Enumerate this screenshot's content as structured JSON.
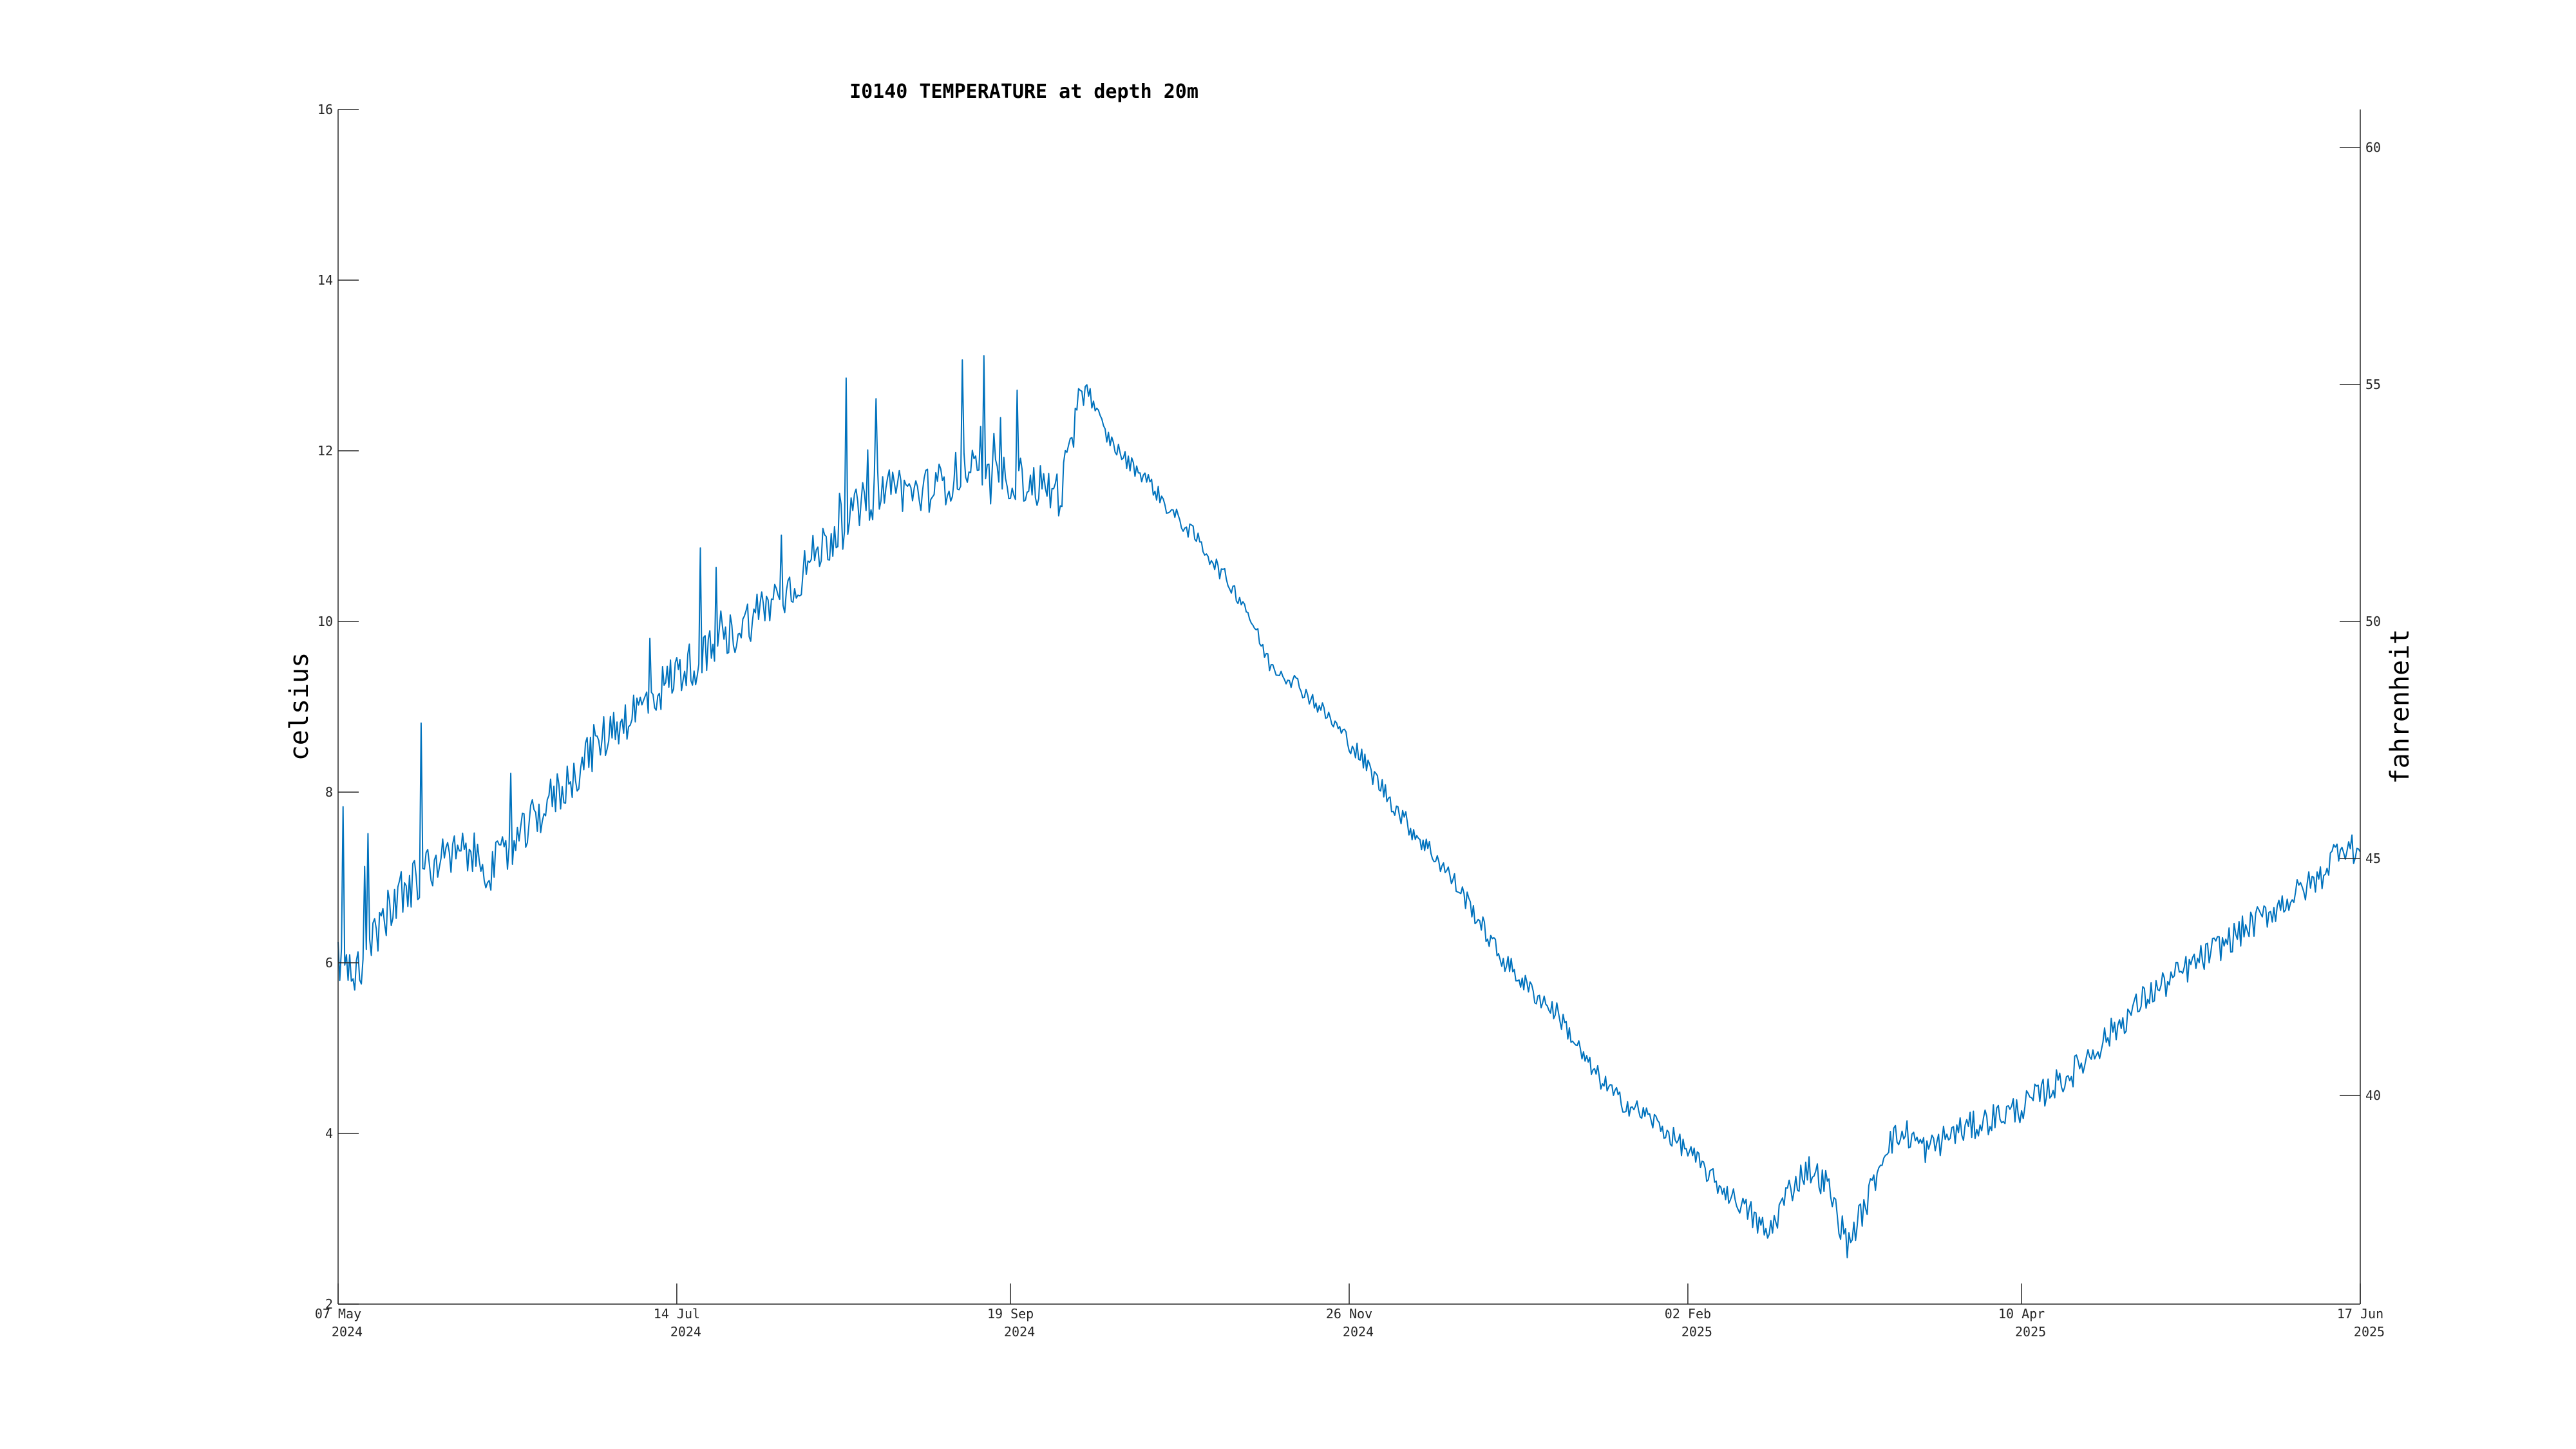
{
  "chart_data": {
    "type": "line",
    "title": "I0140 TEMPERATURE at depth 20m",
    "ylabel": "celsius",
    "y2label": "fahrenheit",
    "xlabel": "",
    "xlim": [
      "2024-05-07",
      "2025-06-17"
    ],
    "ylim": [
      2,
      16
    ],
    "y2lim": [
      35.6,
      60.8
    ],
    "yticks": [
      "2",
      "4",
      "6",
      "8",
      "10",
      "12",
      "14",
      "16"
    ],
    "y2ticks": [
      "40",
      "45",
      "50",
      "55",
      "60"
    ],
    "xticks": [
      {
        "date": "2024-05-07",
        "line1": "07 May",
        "line2": "2024"
      },
      {
        "date": "2024-07-14",
        "line1": "14 Jul",
        "line2": "2024"
      },
      {
        "date": "2024-09-19",
        "line1": "19 Sep",
        "line2": "2024"
      },
      {
        "date": "2024-11-26",
        "line1": "26 Nov",
        "line2": "2024"
      },
      {
        "date": "2025-02-02",
        "line1": "02 Feb",
        "line2": "2025"
      },
      {
        "date": "2025-04-10",
        "line1": "10 Apr",
        "line2": "2025"
      },
      {
        "date": "2025-06-17",
        "line1": "17 Jun",
        "line2": "2025"
      }
    ],
    "grid": false,
    "legend": "none",
    "line_color": "#0072BD",
    "series": [
      {
        "x": [
          "2024-05-07",
          "2024-05-10",
          "2024-05-14",
          "2024-05-18",
          "2024-05-23",
          "2024-05-28",
          "2024-06-02",
          "2024-06-07",
          "2024-06-12",
          "2024-06-17",
          "2024-06-22",
          "2024-06-27",
          "2024-07-02",
          "2024-07-07",
          "2024-07-14",
          "2024-07-20",
          "2024-07-26",
          "2024-08-01",
          "2024-08-06",
          "2024-08-11",
          "2024-08-16",
          "2024-08-21",
          "2024-08-26",
          "2024-08-31",
          "2024-09-05",
          "2024-09-10",
          "2024-09-15",
          "2024-09-19",
          "2024-09-24",
          "2024-09-29",
          "2024-10-04",
          "2024-10-08",
          "2024-10-12",
          "2024-10-16",
          "2024-10-21",
          "2024-10-26",
          "2024-10-31",
          "2024-11-05",
          "2024-11-10",
          "2024-11-15",
          "2024-11-20",
          "2024-11-26",
          "2024-12-02",
          "2024-12-08",
          "2024-12-14",
          "2024-12-20",
          "2024-12-26",
          "2025-01-01",
          "2025-01-07",
          "2025-01-13",
          "2025-01-19",
          "2025-01-25",
          "2025-02-02",
          "2025-02-08",
          "2025-02-14",
          "2025-02-18",
          "2025-02-22",
          "2025-02-26",
          "2025-03-02",
          "2025-03-06",
          "2025-03-10",
          "2025-03-14",
          "2025-03-18",
          "2025-03-22",
          "2025-03-27",
          "2025-04-01",
          "2025-04-05",
          "2025-04-10",
          "2025-04-15",
          "2025-04-20",
          "2025-04-25",
          "2025-04-30",
          "2025-05-05",
          "2025-05-10",
          "2025-05-15",
          "2025-05-20",
          "2025-05-25",
          "2025-05-30",
          "2025-06-04",
          "2025-06-09",
          "2025-06-13",
          "2025-06-17"
        ],
        "y": [
          6.0,
          5.9,
          6.2,
          6.7,
          7.0,
          7.2,
          7.3,
          7.1,
          7.4,
          7.8,
          8.1,
          8.5,
          8.8,
          9.0,
          9.4,
          9.6,
          9.9,
          10.2,
          10.4,
          10.8,
          11.1,
          11.4,
          11.6,
          11.5,
          11.6,
          11.8,
          11.6,
          11.7,
          11.6,
          11.5,
          12.8,
          12.2,
          11.9,
          11.7,
          11.3,
          11.0,
          10.6,
          10.2,
          9.5,
          9.3,
          9.0,
          8.6,
          8.1,
          7.6,
          7.2,
          6.7,
          6.1,
          5.7,
          5.4,
          4.8,
          4.4,
          4.2,
          3.8,
          3.4,
          3.1,
          2.8,
          3.3,
          3.6,
          3.4,
          2.7,
          3.2,
          3.9,
          4.0,
          3.8,
          4.0,
          4.1,
          4.2,
          4.3,
          4.5,
          4.7,
          5.0,
          5.3,
          5.6,
          5.8,
          6.0,
          6.2,
          6.4,
          6.6,
          6.8,
          7.0,
          7.4,
          7.3
        ]
      }
    ]
  }
}
